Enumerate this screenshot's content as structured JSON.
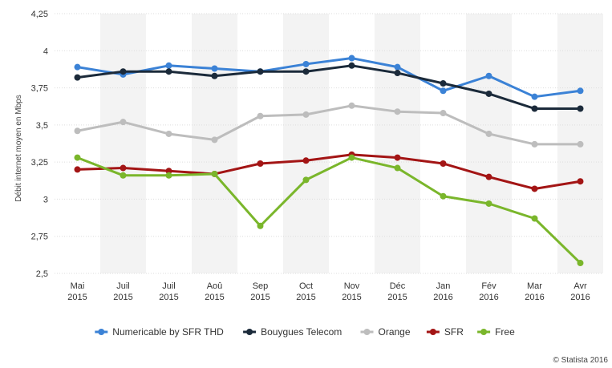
{
  "chart_data": {
    "type": "line",
    "title": "",
    "xlabel": "",
    "ylabel": "Débit internet moyen en Mbps",
    "ylim": [
      2.5,
      4.25
    ],
    "yticks": [
      "2,5",
      "2,75",
      "3",
      "3,25",
      "3,5",
      "3,75",
      "4",
      "4,25"
    ],
    "categories": [
      [
        "Mai",
        "2015"
      ],
      [
        "Juil",
        "2015"
      ],
      [
        "Juil",
        "2015"
      ],
      [
        "Aoû",
        "2015"
      ],
      [
        "Sep",
        "2015"
      ],
      [
        "Oct",
        "2015"
      ],
      [
        "Nov",
        "2015"
      ],
      [
        "Déc",
        "2015"
      ],
      [
        "Jan",
        "2016"
      ],
      [
        "Fév",
        "2016"
      ],
      [
        "Mar",
        "2016"
      ],
      [
        "Avr",
        "2016"
      ]
    ],
    "grid": "horizontal, alternating column bands",
    "legend_position": "bottom-center",
    "series": [
      {
        "name": "Numericable by SFR THD",
        "color": "#3b82d6",
        "values": [
          3.89,
          3.84,
          3.9,
          3.88,
          3.86,
          3.91,
          3.95,
          3.89,
          3.73,
          3.83,
          3.69,
          3.73
        ]
      },
      {
        "name": "Bouygues Telecom",
        "color": "#1b2a3a",
        "values": [
          3.82,
          3.86,
          3.86,
          3.83,
          3.86,
          3.86,
          3.9,
          3.85,
          3.78,
          3.71,
          3.61,
          3.61
        ]
      },
      {
        "name": "Orange",
        "color": "#bdbdbd",
        "values": [
          3.46,
          3.52,
          3.44,
          3.4,
          3.56,
          3.57,
          3.63,
          3.59,
          3.58,
          3.44,
          3.37,
          3.37
        ]
      },
      {
        "name": "SFR",
        "color": "#a31515",
        "values": [
          3.2,
          3.21,
          3.19,
          3.17,
          3.24,
          3.26,
          3.3,
          3.28,
          3.24,
          3.15,
          3.07,
          3.12
        ]
      },
      {
        "name": "Free",
        "color": "#7ab62b",
        "values": [
          3.28,
          3.16,
          3.16,
          3.17,
          2.82,
          3.13,
          3.28,
          3.21,
          3.02,
          2.97,
          2.87,
          2.57
        ]
      }
    ]
  },
  "credit": "© Statista 2016"
}
